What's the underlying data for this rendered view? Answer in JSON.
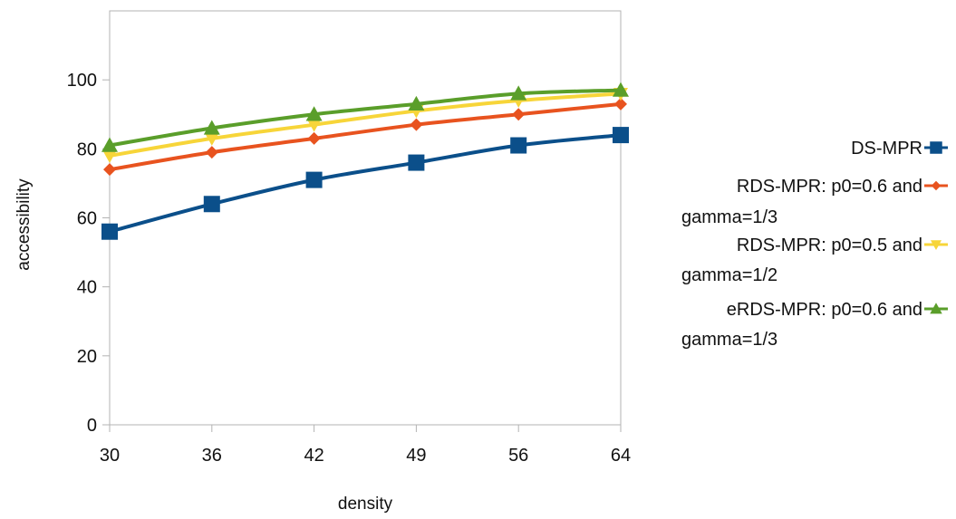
{
  "chart_data": {
    "type": "line",
    "title": "",
    "xlabel": "density",
    "ylabel": "accessibility",
    "categories": [
      "30",
      "36",
      "42",
      "49",
      "56",
      "64"
    ],
    "ylim": [
      0,
      120
    ],
    "yticks": [
      0,
      20,
      40,
      60,
      80,
      100
    ],
    "grid": false,
    "legend_position": "right",
    "series": [
      {
        "name": "DS-MPR",
        "legend_lines": [
          "DS-MPR"
        ],
        "color": "#0b4f8a",
        "marker": "square",
        "values": [
          56,
          64,
          71,
          76,
          81,
          84
        ]
      },
      {
        "name": "RDS-MPR: p0=0.6 and gamma=1/3",
        "legend_lines": [
          "RDS-MPR: p0=0.6 and",
          "gamma=1/3"
        ],
        "color": "#e8531f",
        "marker": "diamond",
        "values": [
          74,
          79,
          83,
          87,
          90,
          93
        ]
      },
      {
        "name": "RDS-MPR: p0=0.5 and gamma=1/2",
        "legend_lines": [
          "RDS-MPR: p0=0.5 and",
          "gamma=1/2"
        ],
        "color": "#f7d539",
        "marker": "triangle-down",
        "values": [
          78,
          83,
          87,
          91,
          94,
          96
        ]
      },
      {
        "name": "eRDS-MPR: p0=0.6 and gamma=1/3",
        "legend_lines": [
          "eRDS-MPR: p0=0.6 and",
          "gamma=1/3"
        ],
        "color": "#5a9e2a",
        "marker": "triangle-up",
        "values": [
          81,
          86,
          90,
          93,
          96,
          97
        ]
      }
    ]
  }
}
